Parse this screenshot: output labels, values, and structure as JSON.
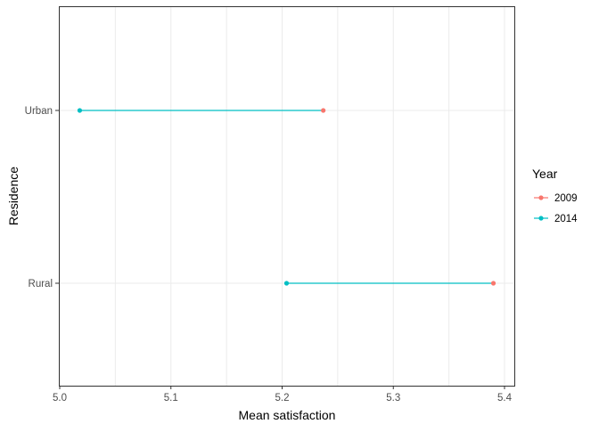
{
  "chart_data": {
    "type": "dumbbell",
    "title": "",
    "xlabel": "Mean satisfaction",
    "ylabel": "Residence",
    "xlim": [
      4.999,
      5.41
    ],
    "x_ticks": [
      "5.0",
      "5.1",
      "5.2",
      "5.3",
      "5.4"
    ],
    "categories": [
      "Urban",
      "Rural"
    ],
    "grid": true,
    "legend": {
      "title": "Year",
      "position": "right"
    },
    "series": [
      {
        "name": "2009",
        "color": "#F8766D",
        "values": [
          5.237,
          5.39
        ]
      },
      {
        "name": "2014",
        "color": "#00BFC4",
        "values": [
          5.018,
          5.204
        ]
      }
    ],
    "segment_color": "#00BFC4"
  }
}
